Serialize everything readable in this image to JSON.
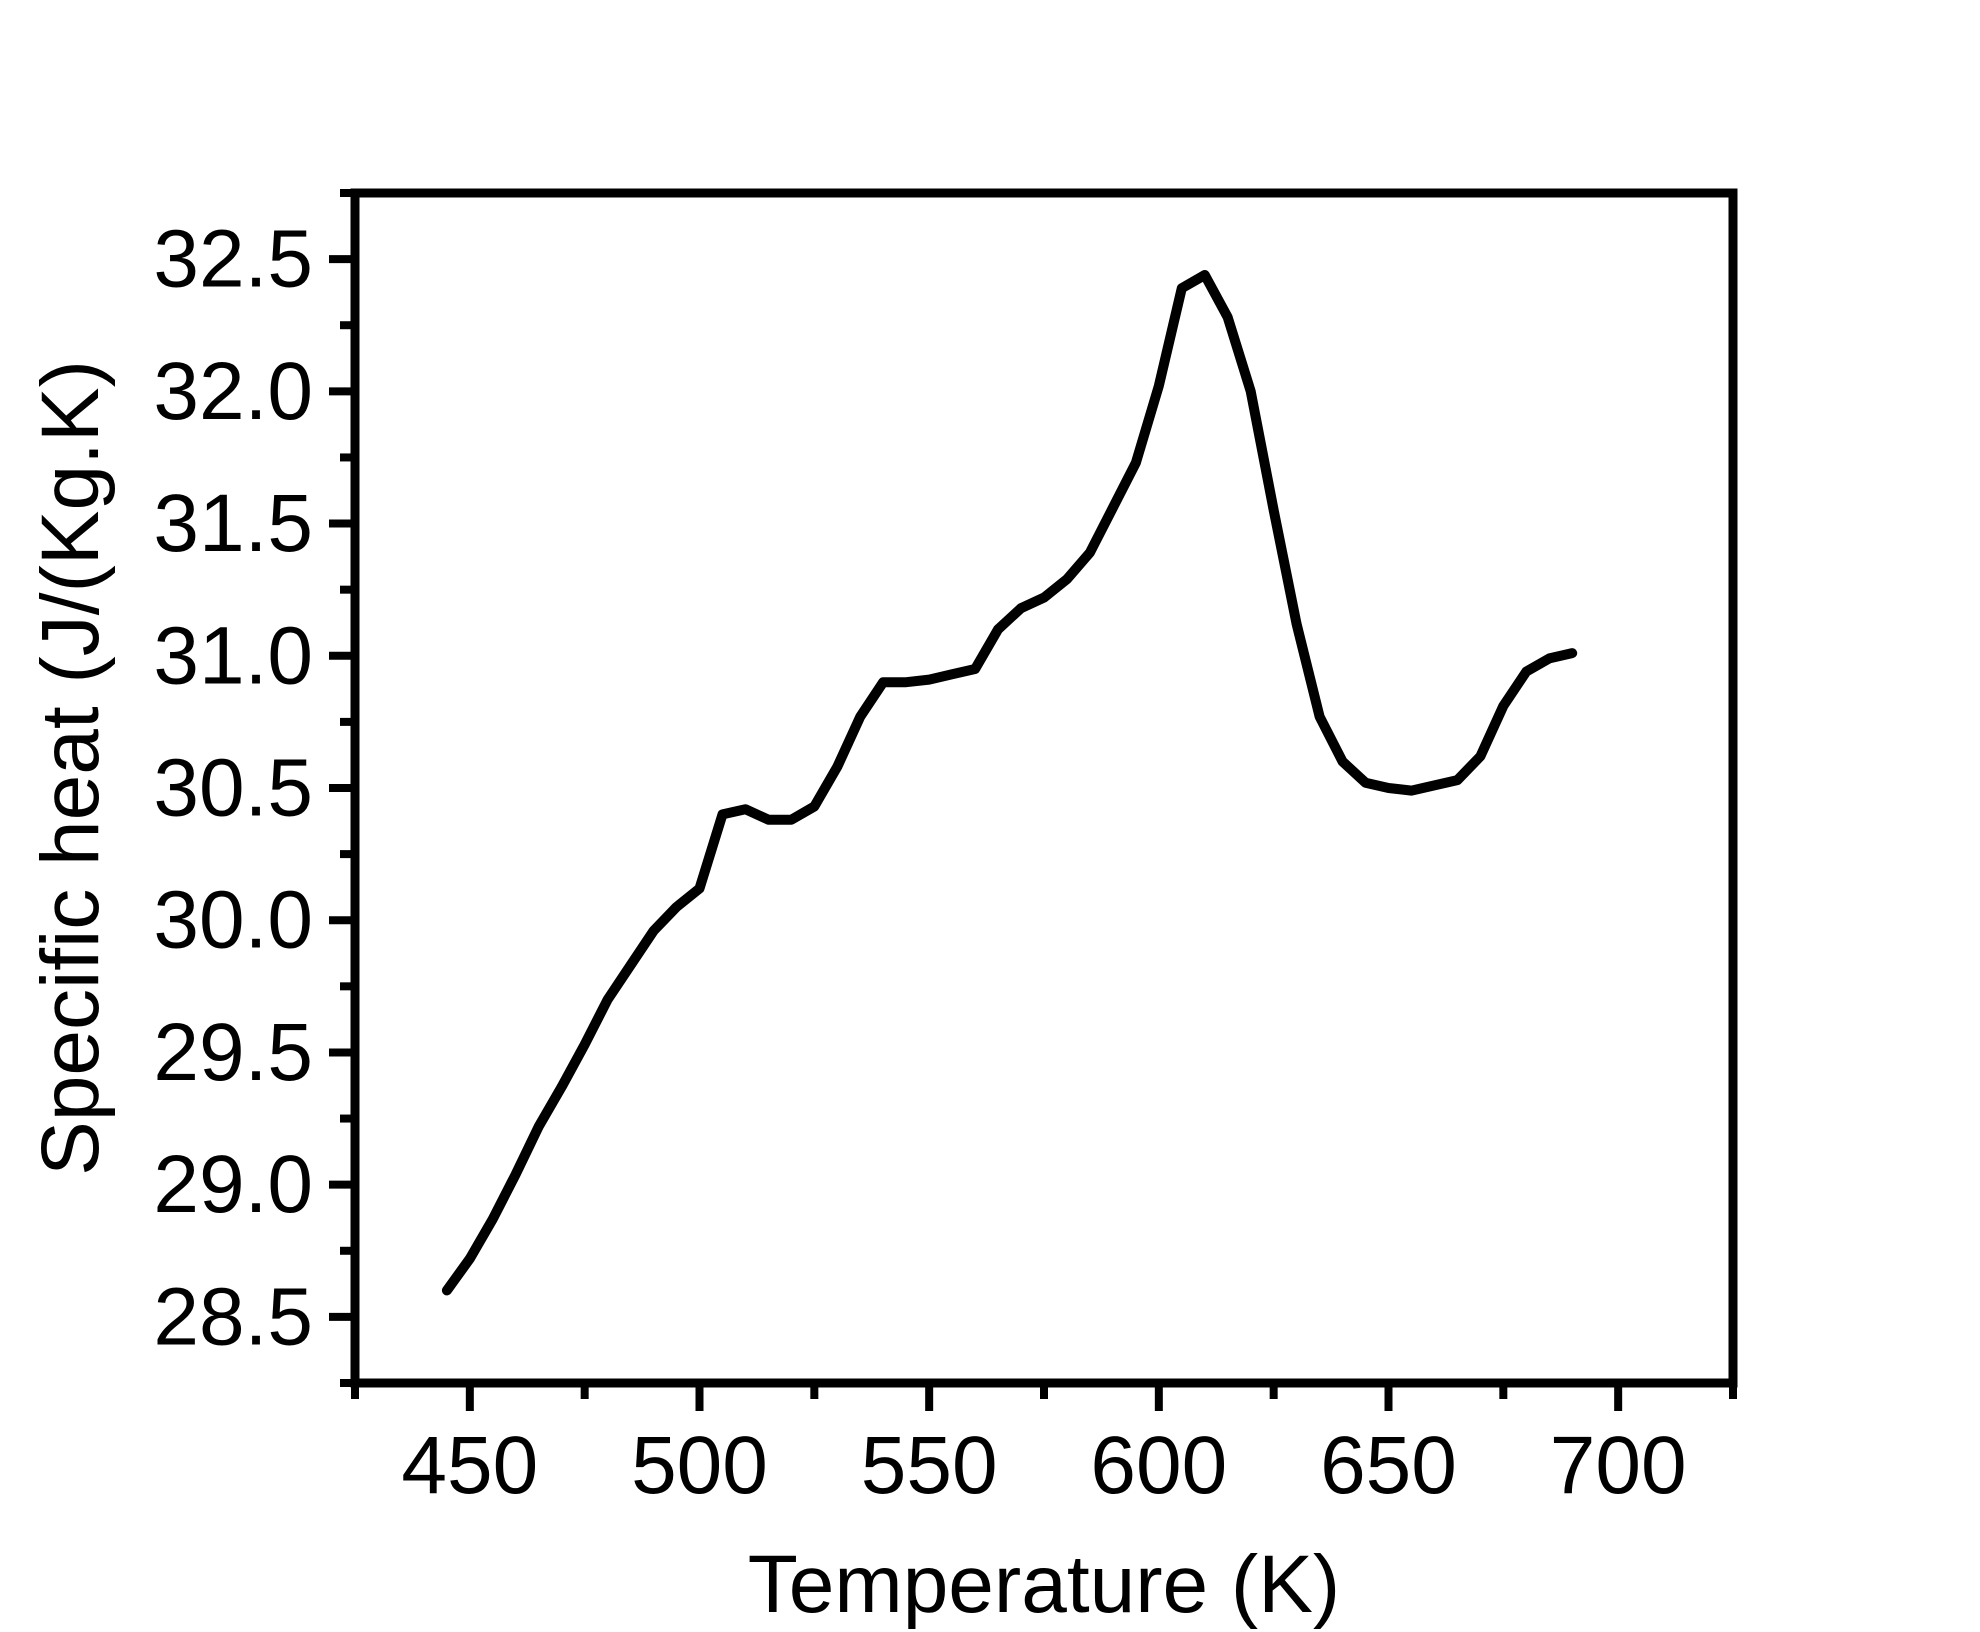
{
  "chart_data": {
    "type": "line",
    "title": "",
    "xlabel": "Temperature (K)",
    "ylabel": "Specific heat (J/(Kg.K)",
    "xlim": [
      425,
      725
    ],
    "ylim": [
      28.25,
      32.75
    ],
    "x_ticks": [
      450,
      500,
      550,
      600,
      650,
      700
    ],
    "x_tick_labels": [
      "450",
      "500",
      "550",
      "600",
      "650",
      "700"
    ],
    "y_ticks": [
      28.5,
      29.0,
      29.5,
      30.0,
      30.5,
      31.0,
      31.5,
      32.0,
      32.5
    ],
    "y_tick_labels": [
      "28.5",
      "29.0",
      "29.5",
      "30.0",
      "30.5",
      "31.0",
      "31.5",
      "32.0",
      "32.5"
    ],
    "grid": false,
    "legend": "none",
    "series": [
      {
        "color": "#000000",
        "x": [
          445,
          450,
          455,
          460,
          465,
          470,
          475,
          480,
          485,
          490,
          495,
          500,
          505,
          510,
          515,
          520,
          525,
          530,
          535,
          540,
          545,
          550,
          555,
          560,
          565,
          570,
          575,
          580,
          585,
          590,
          595,
          600,
          605,
          610,
          615,
          620,
          625,
          630,
          635,
          640,
          645,
          650,
          655,
          660,
          665,
          670,
          675,
          680,
          685,
          690
        ],
        "y": [
          28.6,
          28.72,
          28.87,
          29.04,
          29.22,
          29.37,
          29.53,
          29.7,
          29.83,
          29.96,
          30.05,
          30.12,
          30.4,
          30.42,
          30.38,
          30.38,
          30.43,
          30.58,
          30.77,
          30.9,
          30.9,
          30.91,
          30.93,
          30.95,
          31.1,
          31.18,
          31.22,
          31.29,
          31.39,
          31.56,
          31.73,
          32.02,
          32.39,
          32.44,
          32.28,
          32.0,
          31.55,
          31.12,
          30.77,
          30.6,
          30.52,
          30.5,
          30.49,
          30.51,
          30.53,
          30.62,
          30.81,
          30.94,
          30.99,
          31.01
        ]
      }
    ]
  }
}
